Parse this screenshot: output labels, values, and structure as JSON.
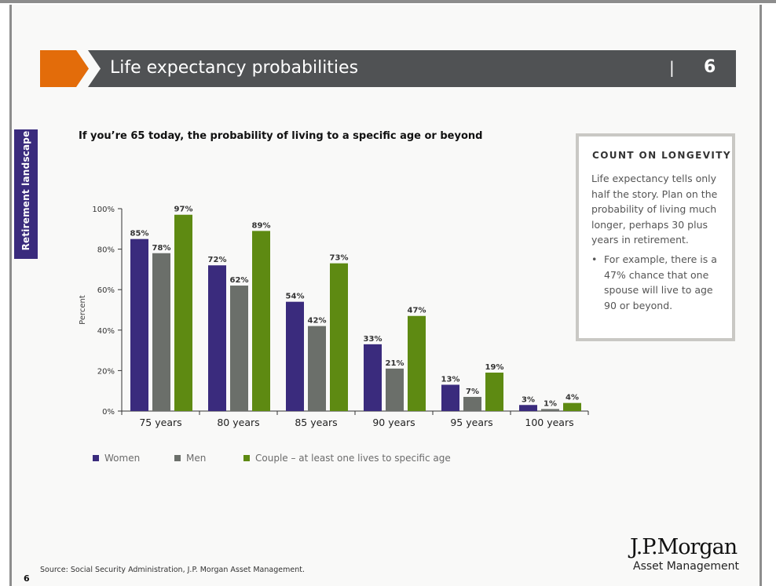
{
  "header": {
    "title": "Life expectancy probabilities",
    "separator": "|",
    "slide_number": "6",
    "accent_color": "#e36c0a",
    "bar_color": "#505254"
  },
  "side_tab": {
    "label": "Retirement landscape",
    "color": "#3a2b7d"
  },
  "chart_title": "If you’re 65 today, the probability of living to a specific age or beyond",
  "chart_data": {
    "type": "bar",
    "categories": [
      "75 years",
      "80 years",
      "85 years",
      "90 years",
      "95 years",
      "100 years"
    ],
    "series": [
      {
        "name": "Women",
        "color": "#3a2b7d",
        "values": [
          85,
          72,
          54,
          33,
          13,
          3
        ],
        "labels": [
          "85%",
          "72%",
          "54%",
          "33%",
          "13%",
          "3%"
        ]
      },
      {
        "name": "Men",
        "color": "#6b6f6a",
        "values": [
          78,
          62,
          42,
          21,
          7,
          1
        ],
        "labels": [
          "78%",
          "62%",
          "42%",
          "21%",
          "7%",
          "1%"
        ]
      },
      {
        "name": "Couple – at least one lives to specific age",
        "color": "#5e8a12",
        "values": [
          97,
          89,
          73,
          47,
          19,
          4
        ],
        "labels": [
          "97%",
          "89%",
          "73%",
          "47%",
          "19%",
          "4%"
        ]
      }
    ],
    "ylabel": "Percent",
    "ylim": [
      0,
      100
    ],
    "yticks": [
      0,
      20,
      40,
      60,
      80,
      100
    ],
    "ytick_labels": [
      "0%",
      "20%",
      "40%",
      "60%",
      "80%",
      "100%"
    ],
    "grid": false,
    "legend": "bottom"
  },
  "callout": {
    "title": "COUNT ON LONGEVITY",
    "body": "Life expectancy tells only half the story. Plan on the probability of living much longer, perhaps 30 plus years in retirement.",
    "bullet_marker": "•",
    "bullet": "For example, there is a 47% chance that one spouse will live to age 90 or beyond."
  },
  "footer": {
    "source": "Source: Social Security Administration, J.P. Morgan Asset Management.",
    "page_number": "6",
    "logo_top": "J.P.Morgan",
    "logo_bottom": "Asset Management"
  }
}
